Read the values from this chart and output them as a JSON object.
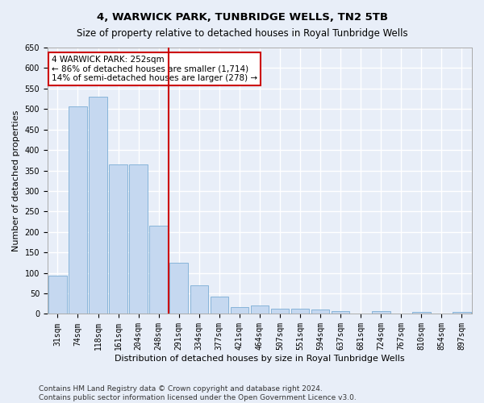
{
  "title": "4, WARWICK PARK, TUNBRIDGE WELLS, TN2 5TB",
  "subtitle": "Size of property relative to detached houses in Royal Tunbridge Wells",
  "xlabel": "Distribution of detached houses by size in Royal Tunbridge Wells",
  "ylabel": "Number of detached properties",
  "categories": [
    "31sqm",
    "74sqm",
    "118sqm",
    "161sqm",
    "204sqm",
    "248sqm",
    "291sqm",
    "334sqm",
    "377sqm",
    "421sqm",
    "464sqm",
    "507sqm",
    "551sqm",
    "594sqm",
    "637sqm",
    "681sqm",
    "724sqm",
    "767sqm",
    "810sqm",
    "854sqm",
    "897sqm"
  ],
  "values": [
    93,
    507,
    530,
    365,
    365,
    215,
    125,
    70,
    43,
    16,
    20,
    12,
    12,
    10,
    6,
    0,
    6,
    0,
    5,
    0,
    5
  ],
  "bar_color": "#c5d8f0",
  "bar_edge_color": "#7aadd4",
  "vline_x": 5.5,
  "vline_color": "#cc0000",
  "annotation_text": "4 WARWICK PARK: 252sqm\n← 86% of detached houses are smaller (1,714)\n14% of semi-detached houses are larger (278) →",
  "annotation_box_color": "#ffffff",
  "annotation_box_edge_color": "#cc0000",
  "ylim": [
    0,
    650
  ],
  "yticks": [
    0,
    50,
    100,
    150,
    200,
    250,
    300,
    350,
    400,
    450,
    500,
    550,
    600,
    650
  ],
  "footer1": "Contains HM Land Registry data © Crown copyright and database right 2024.",
  "footer2": "Contains public sector information licensed under the Open Government Licence v3.0.",
  "bg_color": "#e8eef8",
  "grid_color": "#ffffff",
  "title_fontsize": 9.5,
  "axis_label_fontsize": 8,
  "tick_fontsize": 7,
  "annotation_fontsize": 7.5,
  "footer_fontsize": 6.5
}
